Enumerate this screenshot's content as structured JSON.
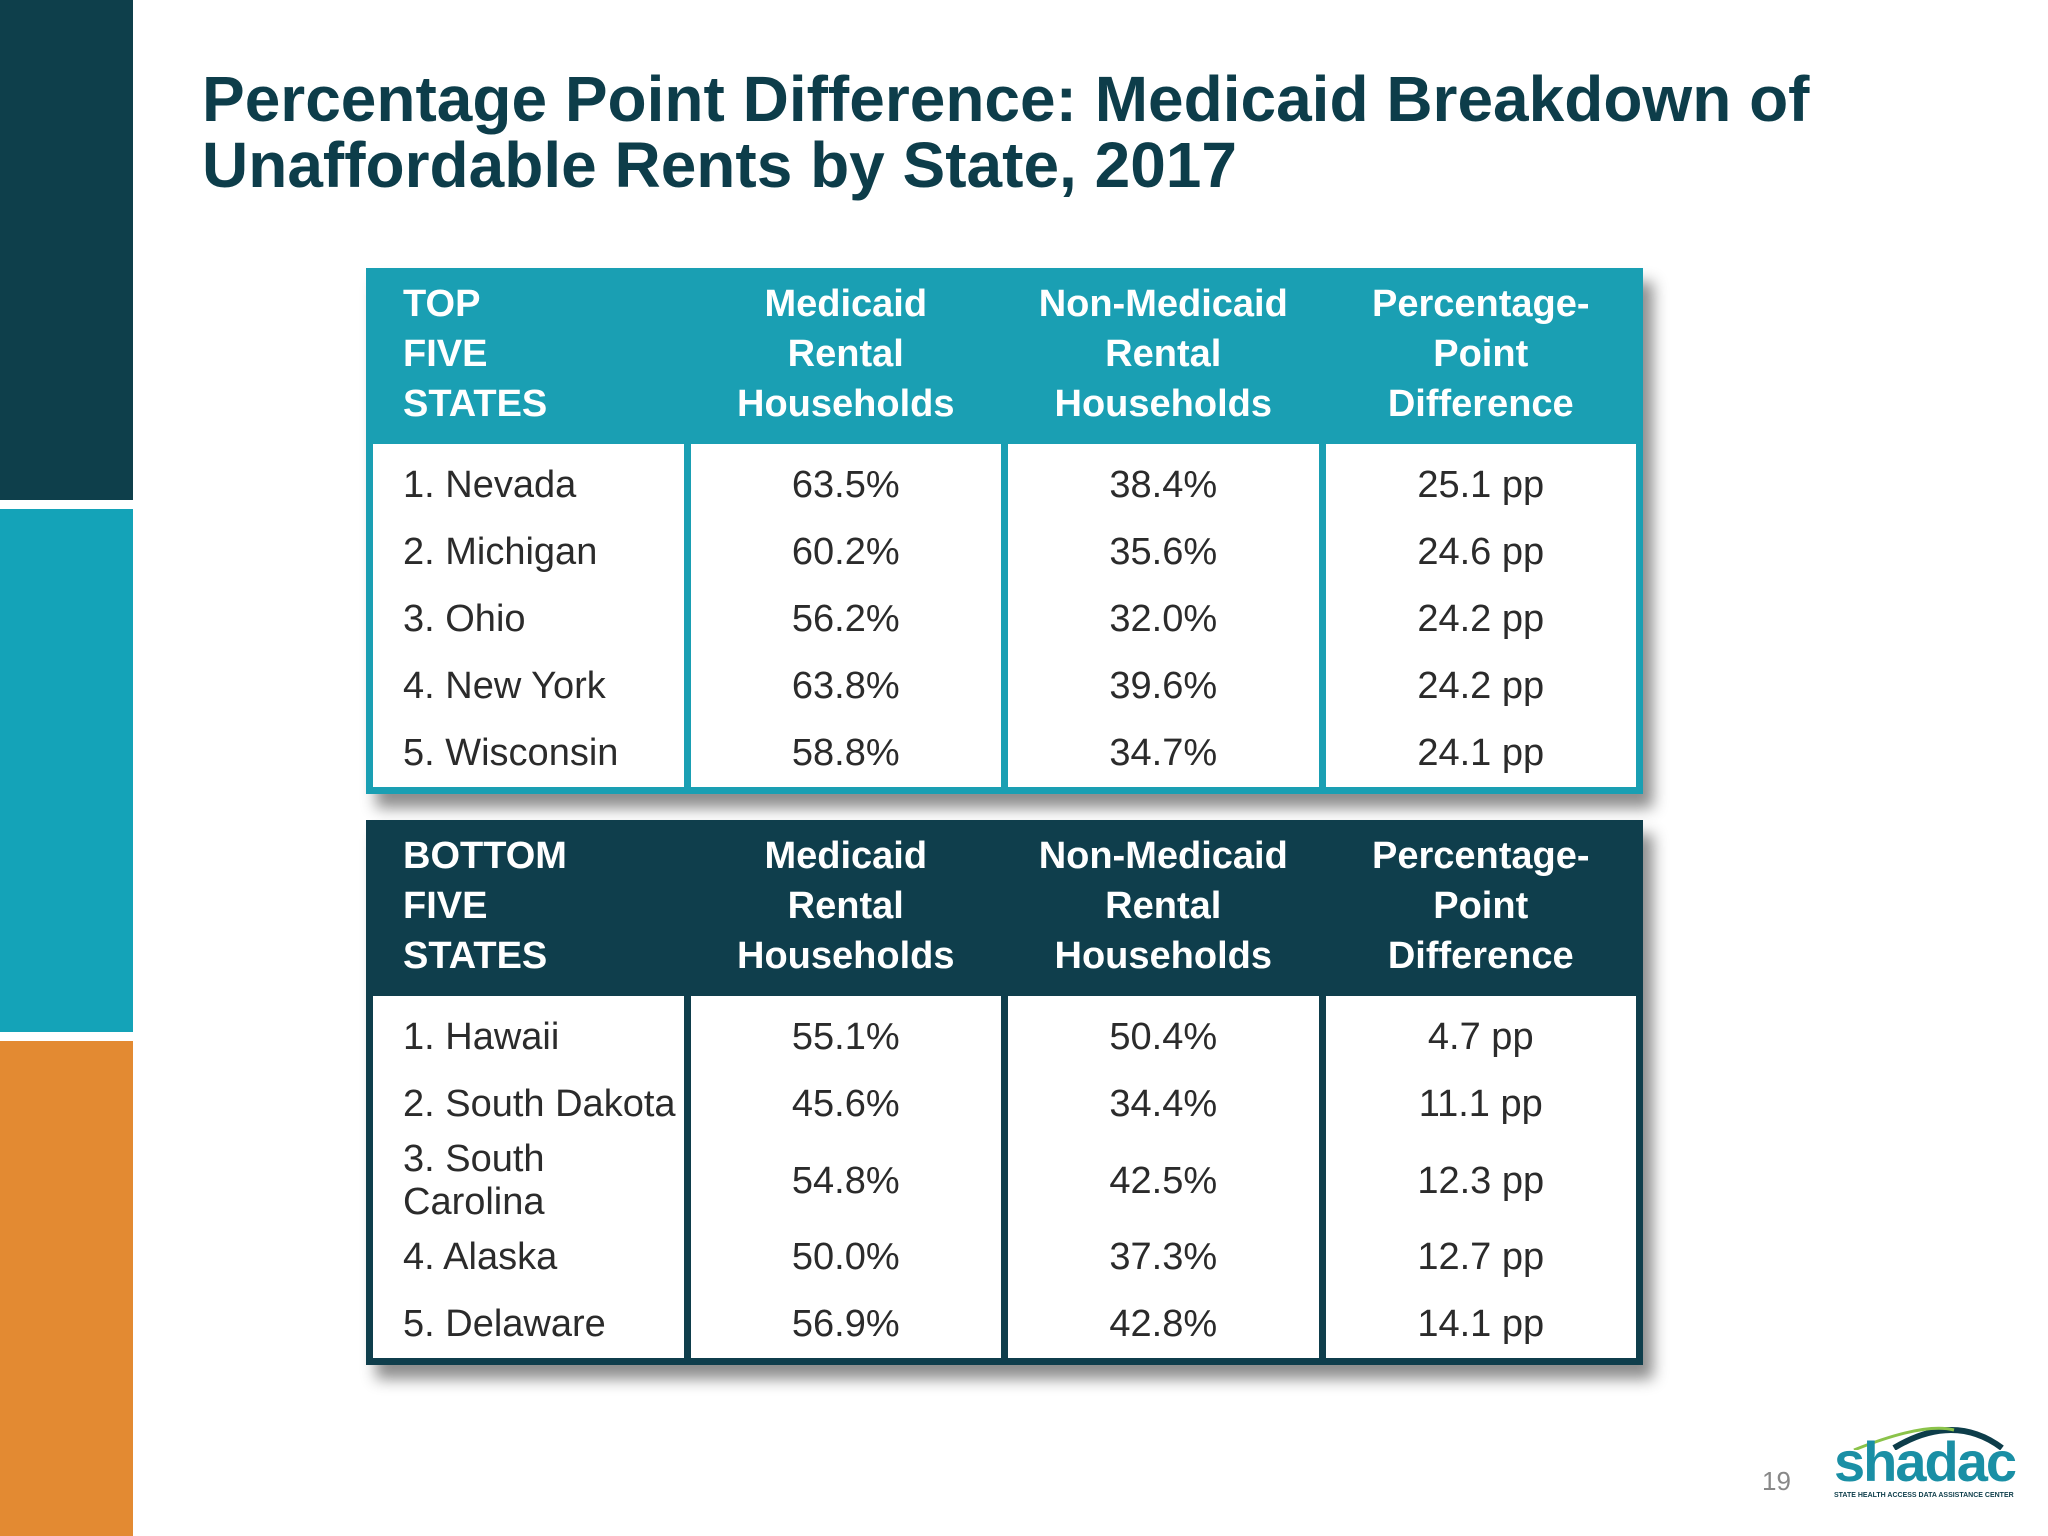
{
  "title": "Percentage Point Difference: Medicaid Breakdown of Unaffordable Rents by State, 2017",
  "tables": [
    {
      "color": "#1a9fb3",
      "header": [
        "TOP\nFIVE\nSTATES",
        "Medicaid\nRental\nHouseholds",
        "Non-Medicaid\nRental\nHouseholds",
        "Percentage-\nPoint\nDifference"
      ],
      "rows": [
        [
          "1. Nevada",
          "63.5%",
          "38.4%",
          "25.1 pp"
        ],
        [
          "2. Michigan",
          "60.2%",
          "35.6%",
          "24.6 pp"
        ],
        [
          "3. Ohio",
          "56.2%",
          "32.0%",
          "24.2 pp"
        ],
        [
          "4. New York",
          "63.8%",
          "39.6%",
          "24.2 pp"
        ],
        [
          "5. Wisconsin",
          "58.8%",
          "34.7%",
          "24.1 pp"
        ]
      ]
    },
    {
      "color": "#0f3e4c",
      "header": [
        "BOTTOM\nFIVE\nSTATES",
        "Medicaid\nRental\nHouseholds",
        "Non-Medicaid\nRental\nHouseholds",
        "Percentage-\nPoint\nDifference"
      ],
      "rows": [
        [
          "1. Hawaii",
          "55.1%",
          "50.4%",
          "4.7 pp"
        ],
        [
          "2. South Dakota",
          "45.6%",
          "34.4%",
          "11.1 pp"
        ],
        [
          "3. South Carolina",
          "54.8%",
          "42.5%",
          "12.3 pp"
        ],
        [
          "4. Alaska",
          "50.0%",
          "37.3%",
          "12.7 pp"
        ],
        [
          "5. Delaware",
          "56.9%",
          "42.8%",
          "14.1 pp"
        ]
      ]
    }
  ],
  "page_number": "19",
  "logo": {
    "name": "shadac",
    "tagline": "STATE HEALTH ACCESS DATA ASSISTANCE CENTER"
  }
}
